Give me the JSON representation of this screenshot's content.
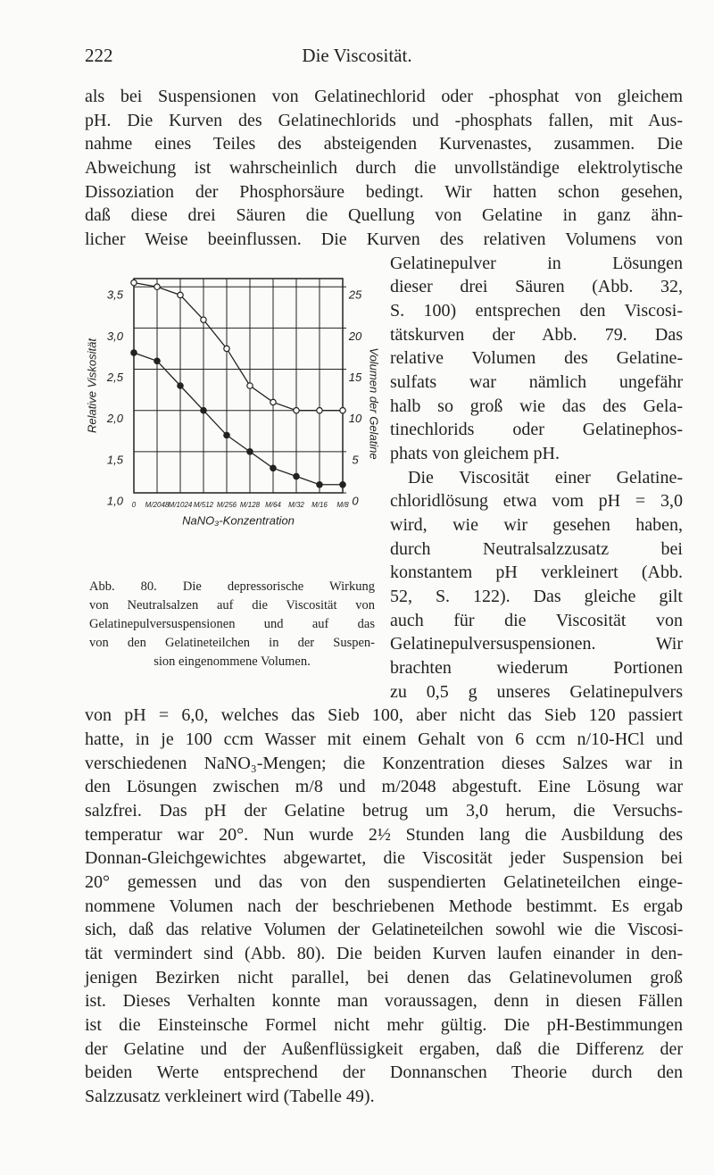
{
  "header": {
    "page_number": "222",
    "running_title": "Die Viscosität."
  },
  "body": {
    "lines_top": [
      "als bei Suspensionen von Gelatinechlorid oder -phosphat von gleichem",
      "pH. Die Kurven des Gelatinechlorids und -phosphats fallen, mit Aus-",
      "nahme eines Teiles des absteigenden Kurvenastes, zusammen. Die",
      "Abweichung ist wahrscheinlich durch die unvollständige elektrolytische",
      "Dissoziation der Phosphorsäure bedingt. Wir hatten schon gesehen,",
      "daß diese drei Säuren die Quellung von Gelatine in ganz ähn-",
      "licher Weise beeinflussen. Die Kurven des relativen Volumens von"
    ],
    "lines_beside_figure": [
      "Gelatinepulver in Lösungen",
      "dieser drei Säuren (Abb. 32,",
      "S. 100) entsprechen den Viscosi-",
      "tätskurven der Abb. 79. Das",
      "relative Volumen des Gelatine-",
      "sulfats war nämlich ungefähr",
      "halb so groß wie das des Gela-",
      "tinechlorids oder Gelatinephos-",
      "phats von gleichem pH.",
      "Die Viscosität einer Gelatine-",
      "chloridlösung etwa vom pH = 3,0",
      "wird, wie wir gesehen haben,",
      "durch Neutralsalzzusatz bei",
      "konstantem pH verkleinert (Abb.",
      "52, S. 122). Das gleiche gilt",
      "auch für die Viscosität von",
      "Gelatinepulversuspensionen. Wir",
      "brachten wiederum Portionen",
      "zu 0,5 g unseres Gelatinepulvers"
    ],
    "lines_bottom": [
      "von pH = 6,0, welches das Sieb 100, aber nicht das Sieb 120 passiert",
      "hatte, in je 100 ccm Wasser mit einem Gehalt von 6 ccm n/10-HCl und",
      "verschiedenen NaNO₃-Mengen; die Konzentration dieses Salzes war in",
      "den Lösungen zwischen m/8 und m/2048 abgestuft. Eine Lösung war",
      "salzfrei. Das pH der Gelatine betrug um 3,0 herum, die Versuchs-",
      "temperatur war 20°. Nun wurde 2½ Stunden lang die Ausbildung des",
      "Donnan-Gleichgewichtes abgewartet, die Viscosität jeder Suspension bei",
      "20° gemessen und das von den suspendierten Gelatineteilchen einge-",
      "nommene Volumen nach der beschriebenen Methode bestimmt. Es ergab",
      "sich, daß das relative Volumen der Gelatineteilchen sowohl wie die Viscosi-",
      "tät vermindert sind (Abb. 80). Die beiden Kurven laufen einander in den-",
      "jenigen Bezirken nicht parallel, bei denen das Gelatinevolumen groß",
      "ist. Dieses Verhalten konnte man voraussagen, denn in diesen Fällen",
      "ist die Einsteinsche Formel nicht mehr gültig. Die pH-Bestimmungen",
      "der Gelatine und der Außenflüssigkeit ergaben, daß die Differenz der",
      "beiden Werte entsprechend der Donnanschen Theorie durch den",
      "Salzzusatz verkleinert wird (Tabelle 49)."
    ]
  },
  "figure": {
    "caption_lines": [
      "Abb. 80. Die depressorische Wirkung",
      "von Neutralsalzen auf die Viscosität von",
      "Gelatinepulversuspensionen und auf das",
      "von den Gelatineteilchen in der Suspen-",
      "sion eingenommene Volumen."
    ],
    "chart_data": {
      "type": "line",
      "x_label": "NaNO₃-Konzentration",
      "y_label": "Relative Viskosität",
      "y2_label": "Volumen der Gelatine",
      "categories": [
        "0",
        "M/2048",
        "M/1024",
        "M/512",
        "M/256",
        "M/128",
        "M/64",
        "M/32",
        "M/16",
        "M/8"
      ],
      "ylim": [
        1.0,
        3.6
      ],
      "yticks": [
        {
          "value": 1.0,
          "label": "1,0"
        },
        {
          "value": 1.5,
          "label": "1,5"
        },
        {
          "value": 2.0,
          "label": "2,0"
        },
        {
          "value": 2.5,
          "label": "2,5"
        },
        {
          "value": 3.0,
          "label": "3,0"
        },
        {
          "value": 3.5,
          "label": "3,5"
        }
      ],
      "y2lim": [
        0,
        26
      ],
      "y2ticks": [
        0,
        5,
        10,
        15,
        20,
        25
      ],
      "grid": true,
      "series": [
        {
          "color": "#222222",
          "marker": "open",
          "values": [
            3.55,
            3.5,
            3.4,
            3.1,
            2.75,
            2.3,
            2.1,
            2.0,
            2.0,
            2.0
          ]
        },
        {
          "color": "#222222",
          "marker": "filled",
          "axis": "y2",
          "values": [
            17,
            16,
            13,
            10,
            7,
            5,
            3,
            2,
            1,
            1
          ]
        }
      ]
    }
  }
}
